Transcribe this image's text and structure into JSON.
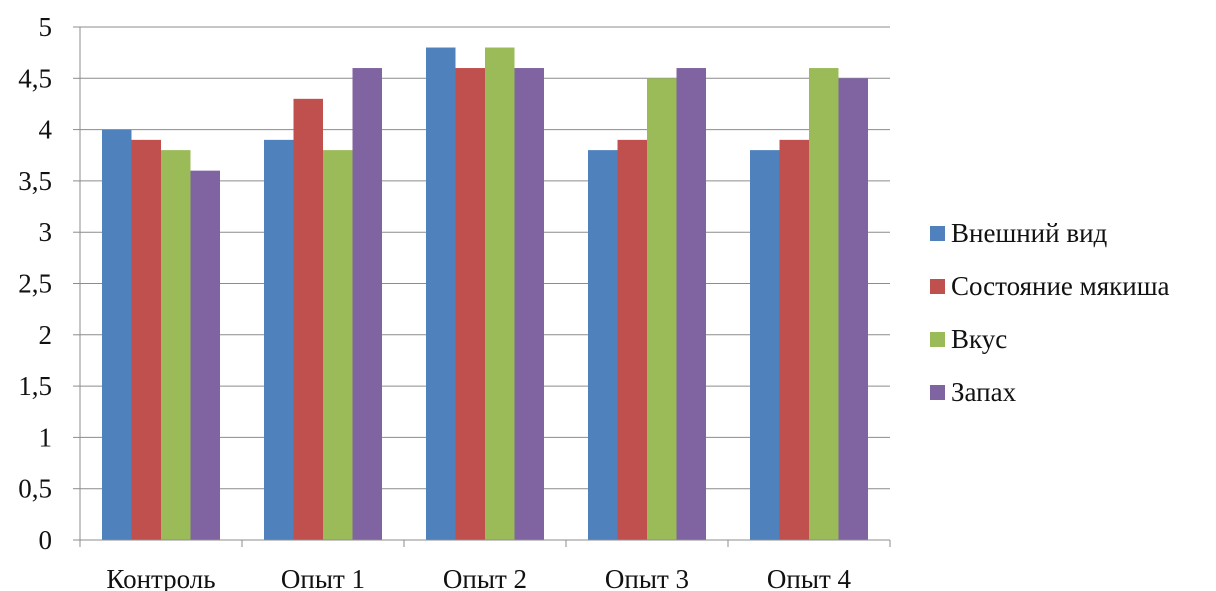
{
  "chart_data": {
    "type": "bar",
    "title": "",
    "xlabel": "",
    "ylabel": "",
    "categories": [
      "Контроль",
      "Опыт 1",
      "Опыт 2",
      "Опыт 3",
      "Опыт 4"
    ],
    "series": [
      {
        "name": "Внешний вид",
        "color": "#4f81bd",
        "values": [
          4.0,
          3.9,
          4.8,
          3.8,
          3.8
        ]
      },
      {
        "name": "Состояние мякиша",
        "color": "#c0504d",
        "values": [
          3.9,
          4.3,
          4.6,
          3.9,
          3.9
        ]
      },
      {
        "name": "Вкус",
        "color": "#9bbb59",
        "values": [
          3.8,
          3.8,
          4.8,
          4.5,
          4.6
        ]
      },
      {
        "name": "Запах",
        "color": "#8064a2",
        "values": [
          3.6,
          4.6,
          4.6,
          4.6,
          4.5
        ]
      }
    ],
    "ylim": [
      0,
      5
    ],
    "yticks": [
      "0",
      "0,5",
      "1",
      "1,5",
      "2",
      "2,5",
      "3",
      "3,5",
      "4",
      "4,5",
      "5"
    ],
    "grid": true,
    "legend_position": "right"
  }
}
